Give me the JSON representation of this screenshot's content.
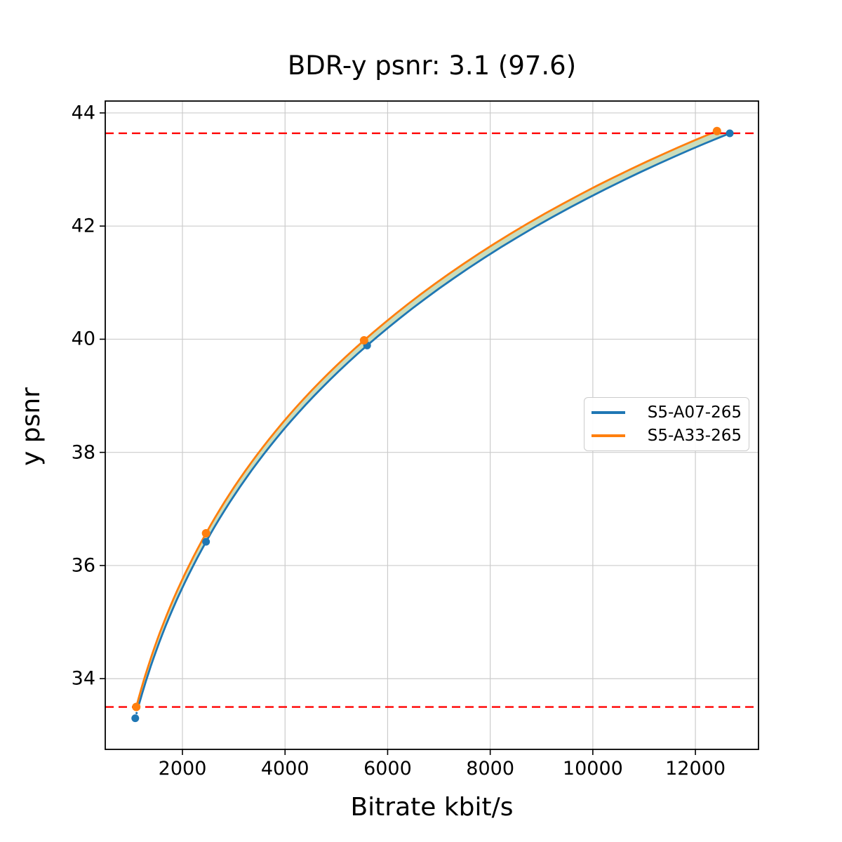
{
  "accent_colors": {
    "series_blue": "#1f77b4",
    "series_orange": "#ff7f0e",
    "hline_red": "#ff0000",
    "fill_green": "#c9ddbc",
    "grid_gray": "#cccccc",
    "spine_black": "#000000"
  },
  "chart_data": {
    "type": "line",
    "title": "BDR-y psnr: 3.1 (97.6)",
    "xlabel": "Bitrate kbit/s",
    "ylabel": "y psnr",
    "xlim": [
      495,
      13230
    ],
    "ylim": [
      32.75,
      44.21
    ],
    "xticks": [
      2000,
      4000,
      6000,
      8000,
      10000,
      12000
    ],
    "yticks": [
      34,
      36,
      38,
      40,
      42,
      44
    ],
    "grid": true,
    "legend_position": "center right",
    "series": [
      {
        "name": "S5-A07-265",
        "color": "#1f77b4",
        "marker": "circle",
        "points": [
          [
            1080,
            33.3
          ],
          [
            2460,
            36.42
          ],
          [
            5600,
            39.89
          ],
          [
            12670,
            43.64
          ]
        ]
      },
      {
        "name": "S5-A33-265",
        "color": "#ff7f0e",
        "marker": "circle",
        "points": [
          [
            1100,
            33.5
          ],
          [
            2460,
            36.57
          ],
          [
            5540,
            39.98
          ],
          [
            12420,
            43.68
          ]
        ]
      }
    ],
    "hlines": {
      "values": [
        33.5,
        43.64
      ],
      "color": "#ff0000",
      "style": "dashed"
    },
    "fill_between": {
      "between": [
        "S5-A07-265",
        "S5-A33-265"
      ],
      "color": "#c9ddbc"
    }
  }
}
